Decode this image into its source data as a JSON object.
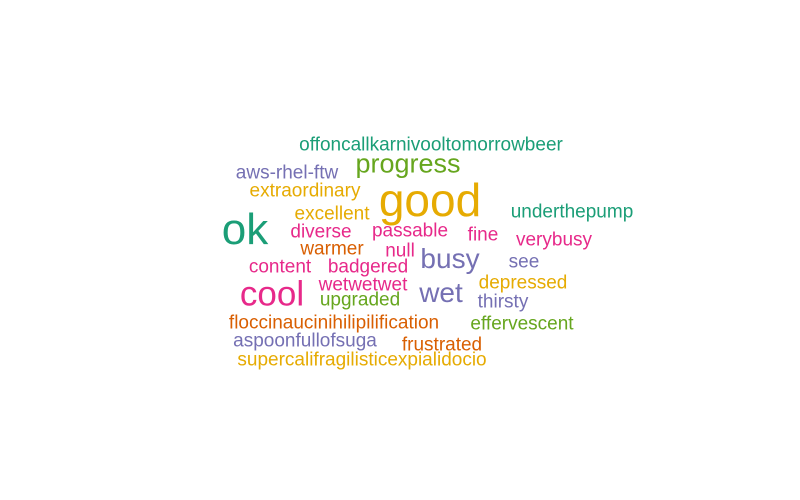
{
  "palette": {
    "teal": "#1b9e77",
    "orange": "#d95f02",
    "purple": "#7570b3",
    "pink": "#e7298a",
    "green": "#66a61e",
    "gold": "#e6ab02"
  },
  "words": [
    {
      "text": "offoncallkarnivooltomorrowbeer",
      "color": "teal"
    },
    {
      "text": "progress",
      "color": "green"
    },
    {
      "text": "aws-rhel-ftw",
      "color": "purple"
    },
    {
      "text": "extraordinary",
      "color": "gold"
    },
    {
      "text": "good",
      "color": "gold"
    },
    {
      "text": "excellent",
      "color": "gold"
    },
    {
      "text": "underthepump",
      "color": "teal"
    },
    {
      "text": "ok",
      "color": "teal"
    },
    {
      "text": "diverse",
      "color": "pink"
    },
    {
      "text": "passable",
      "color": "pink"
    },
    {
      "text": "fine",
      "color": "pink"
    },
    {
      "text": "verybusy",
      "color": "pink"
    },
    {
      "text": "warmer",
      "color": "orange"
    },
    {
      "text": "null",
      "color": "pink"
    },
    {
      "text": "busy",
      "color": "purple"
    },
    {
      "text": "content",
      "color": "pink"
    },
    {
      "text": "badgered",
      "color": "pink"
    },
    {
      "text": "see",
      "color": "purple"
    },
    {
      "text": "wetwetwet",
      "color": "pink"
    },
    {
      "text": "depressed",
      "color": "gold"
    },
    {
      "text": "cool",
      "color": "pink"
    },
    {
      "text": "wet",
      "color": "purple"
    },
    {
      "text": "upgraded",
      "color": "green"
    },
    {
      "text": "thirsty",
      "color": "purple"
    },
    {
      "text": "floccinaucinihilipilification",
      "color": "orange"
    },
    {
      "text": "effervescent",
      "color": "green"
    },
    {
      "text": "aspoonfullofsuga",
      "color": "purple"
    },
    {
      "text": "frustrated",
      "color": "orange"
    },
    {
      "text": "supercalifragilisticexpialidocio",
      "color": "gold"
    }
  ]
}
